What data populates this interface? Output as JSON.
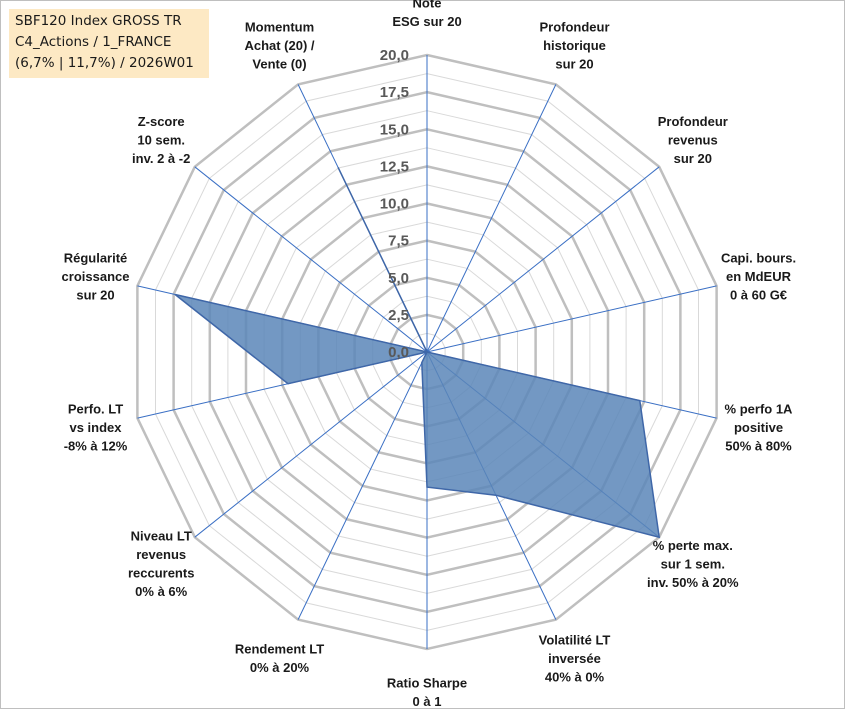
{
  "title": {
    "line1": "SBF120 Index GROSS TR",
    "line2": "C4_Actions / 1_FRANCE",
    "line3": "(6,7% | 11,7%) / 2026W01"
  },
  "colors": {
    "fill": "#5b86b8",
    "stroke": "#3f67a8",
    "grid_outer": "#bfbfbf",
    "grid_inner": "#d9d9d9",
    "spoke": "#3a6fc4"
  },
  "chart_data": {
    "type": "radar",
    "ylim": [
      0,
      20
    ],
    "ticks": [
      "0,0",
      "2,5",
      "5,0",
      "7,5",
      "10,0",
      "12,5",
      "15,0",
      "17,5",
      "20,0"
    ],
    "axes": [
      {
        "label": [
          "Note",
          "ESG sur 20"
        ],
        "value": 0.0
      },
      {
        "label": [
          "Profondeur",
          "historique",
          "sur 20"
        ],
        "value": 0.0
      },
      {
        "label": [
          "Profondeur",
          "revenus",
          "sur 20"
        ],
        "value": 0.0
      },
      {
        "label": [
          "Capi. bours.",
          "en MdEUR",
          "0 à 60 G€"
        ],
        "value": 0.0
      },
      {
        "label": [
          "% perfo 1A",
          "positive",
          "50% à 80%"
        ],
        "value": 14.7
      },
      {
        "label": [
          "% perte max.",
          "sur 1 sem.",
          "inv. 50% à 20%"
        ],
        "value": 20.0
      },
      {
        "label": [
          "Volatilité LT",
          "inversée",
          "40% à 0%"
        ],
        "value": 10.7
      },
      {
        "label": [
          "Ratio Sharpe",
          "0 à 1"
        ],
        "value": 9.1
      },
      {
        "label": [
          "Rendement LT",
          "0% à 20%"
        ],
        "value": 0.8
      },
      {
        "label": [
          "Niveau LT",
          "revenus",
          "reccurents",
          "0% à 6%"
        ],
        "value": 0.0
      },
      {
        "label": [
          "Perfo. LT",
          "vs index",
          "-8% à 12%"
        ],
        "value": 9.6
      },
      {
        "label": [
          "Régularité",
          "croissance",
          "sur 20"
        ],
        "value": 17.4
      },
      {
        "label": [
          "Z-score",
          "10 sem.",
          "inv. 2 à -2"
        ],
        "value": 0.0
      },
      {
        "label": [
          "Momentum",
          "Achat (20) /",
          "Vente (0)"
        ],
        "value": 13.8
      }
    ]
  }
}
